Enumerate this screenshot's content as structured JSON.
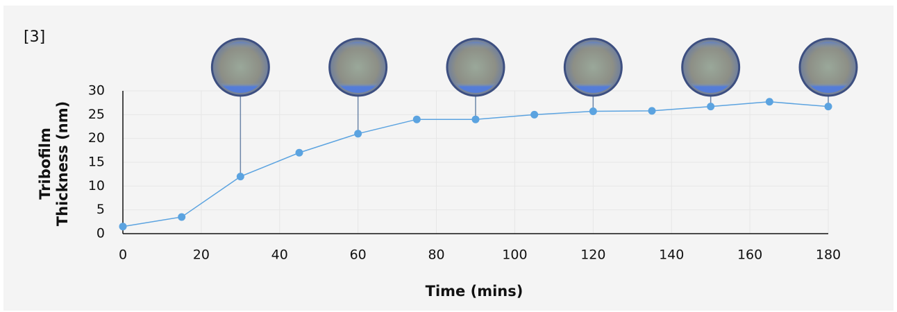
{
  "chart_data": {
    "type": "line",
    "annotation": "[3]",
    "x_label": "Time (mins)",
    "y_label": [
      "Tribofilm",
      "Thickness (nm)"
    ],
    "x": [
      0,
      15,
      30,
      45,
      60,
      75,
      90,
      105,
      120,
      135,
      150,
      165,
      180
    ],
    "series": [
      {
        "name": "Tribofilm Thickness",
        "color": "#5ba3e0",
        "values": [
          1.5,
          3.5,
          12,
          17,
          21,
          24,
          24,
          25,
          25.7,
          25.8,
          26.7,
          27.7,
          26.7
        ]
      }
    ],
    "xlim": [
      0,
      180
    ],
    "xticks": [
      0,
      20,
      40,
      60,
      80,
      100,
      120,
      140,
      160,
      180
    ],
    "ylim": [
      0,
      30
    ],
    "yticks": [
      0,
      5,
      10,
      15,
      20,
      25,
      30
    ],
    "grid": true
  }
}
